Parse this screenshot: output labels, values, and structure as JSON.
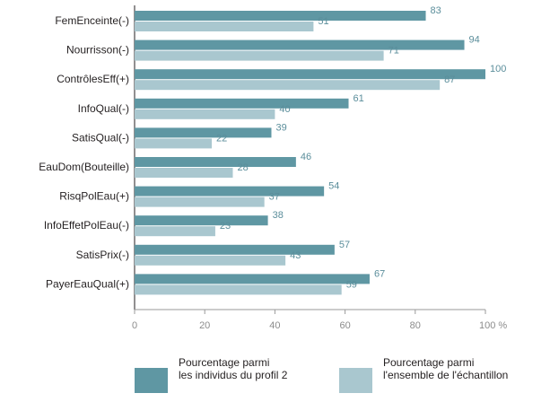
{
  "chart_data": {
    "type": "bar",
    "orientation": "horizontal",
    "categories": [
      "FemEnceinte(-)",
      "Nourrisson(-)",
      "ContrôlesEff(+)",
      "InfoQual(-)",
      "SatisQual(-)",
      "EauDom(Bouteille)",
      "RisqPolEau(+)",
      "InfoEffetPolEau(-)",
      "SatisPrix(-)",
      "PayerEauQual(+)"
    ],
    "series": [
      {
        "name": "Pourcentage parmi les individus du profil 2",
        "color": "#5f97a3",
        "values": [
          83,
          94,
          100,
          61,
          39,
          46,
          54,
          38,
          57,
          67
        ]
      },
      {
        "name": "Pourcentage parmi l'ensemble de l'échantillon",
        "color": "#a9c7cf",
        "values": [
          51,
          71,
          87,
          40,
          22,
          28,
          37,
          23,
          43,
          59
        ]
      }
    ],
    "xlim": [
      0,
      100
    ],
    "x_ticks": [
      "0",
      "20",
      "40",
      "60",
      "80",
      "100 %"
    ],
    "legend_position": "bottom",
    "grid": false
  },
  "legend": [
    {
      "line1": "Pourcentage parmi",
      "line2": "les individus du profil 2"
    },
    {
      "line1": "Pourcentage parmi",
      "line2": "l'ensemble de l'échantillon"
    }
  ]
}
